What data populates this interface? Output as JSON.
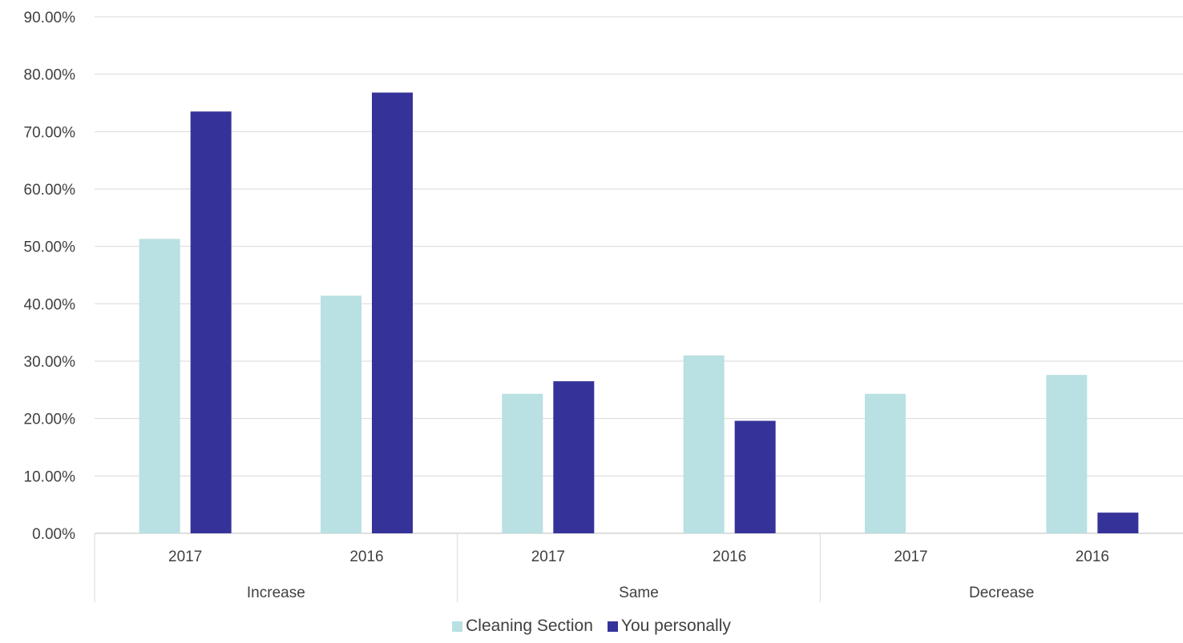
{
  "chart_data": {
    "type": "bar",
    "groups": [
      {
        "label": "Increase",
        "categories": [
          "2017",
          "2016"
        ]
      },
      {
        "label": "Same",
        "categories": [
          "2017",
          "2016"
        ]
      },
      {
        "label": "Decrease",
        "categories": [
          "2017",
          "2016"
        ]
      }
    ],
    "series": [
      {
        "name": "Cleaning Section",
        "color": "#b9e0e2",
        "values": [
          51.3,
          41.4,
          24.3,
          31.0,
          24.3,
          27.6
        ]
      },
      {
        "name": "You personally",
        "color": "#35339a",
        "values": [
          73.5,
          76.8,
          26.5,
          19.6,
          0.0,
          3.6
        ]
      }
    ],
    "ylim": [
      0,
      90
    ],
    "yticks": [
      "0.00%",
      "10.00%",
      "20.00%",
      "30.00%",
      "40.00%",
      "50.00%",
      "60.00%",
      "70.00%",
      "80.00%",
      "90.00%"
    ],
    "grid": true,
    "legend_position": "bottom",
    "title": "",
    "xlabel": "",
    "ylabel": ""
  }
}
